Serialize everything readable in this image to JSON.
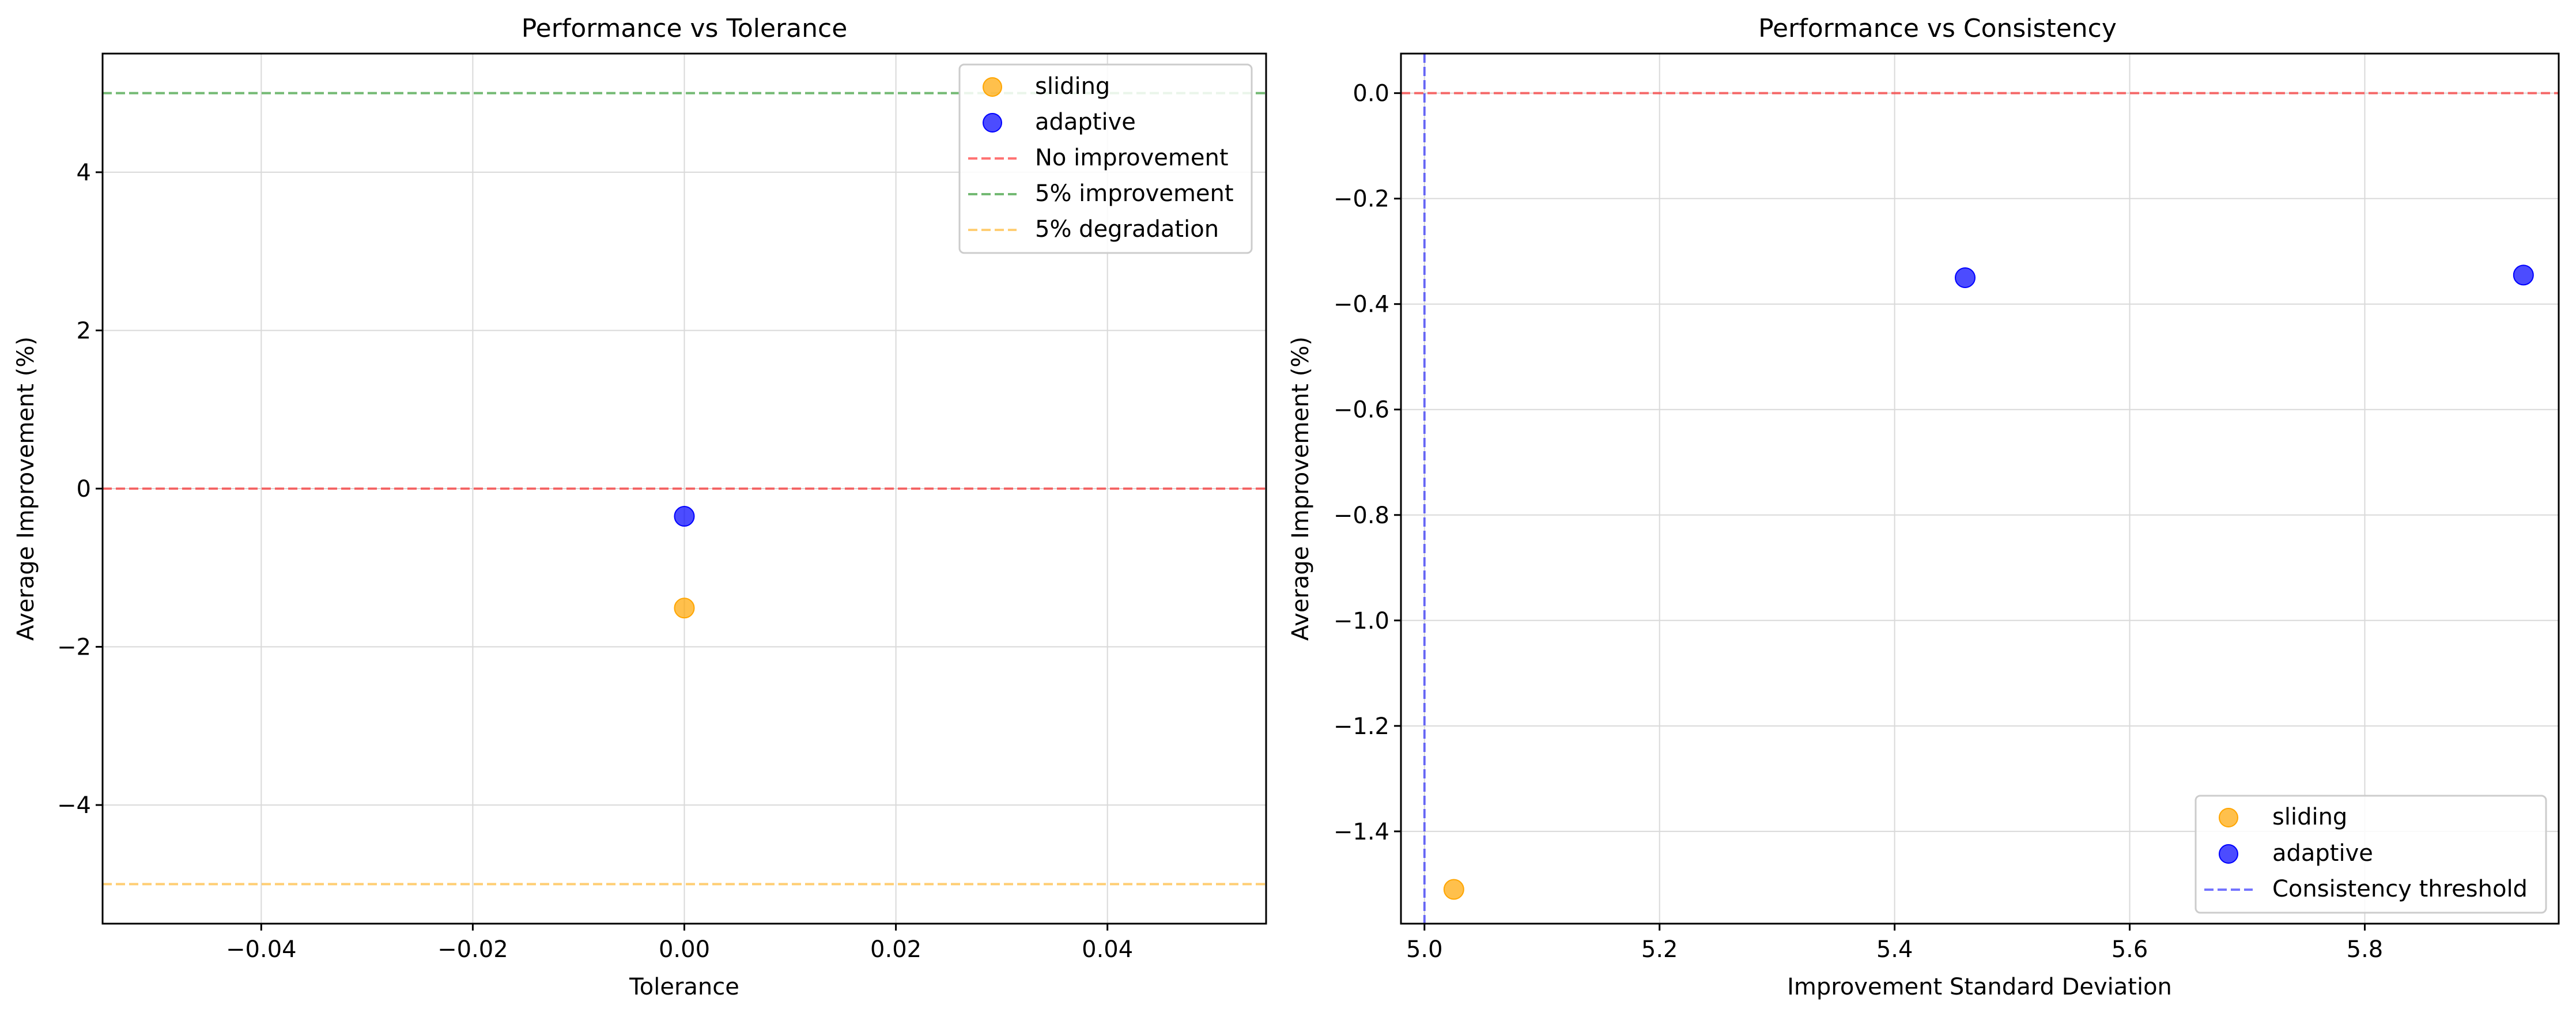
{
  "colors": {
    "sliding": "#FFA500",
    "adaptive": "#0000FF",
    "no_improvement": "#FF0000",
    "improvement_5": "#008000",
    "degradation_5": "#FFA500",
    "consistency_threshold": "#0000FF",
    "grid": "#d9d9d9"
  },
  "chart_data": [
    {
      "type": "scatter",
      "title": "Performance vs Tolerance",
      "xlabel": "Tolerance",
      "ylabel": "Average Improvement (%)",
      "xlim": [
        -0.055,
        0.055
      ],
      "ylim": [
        -5.5,
        5.5
      ],
      "xticks": [
        -0.04,
        -0.02,
        0.0,
        0.02,
        0.04
      ],
      "xtick_labels": [
        "−0.04",
        "−0.02",
        "0.00",
        "0.02",
        "0.04"
      ],
      "yticks": [
        -4,
        -2,
        0,
        2,
        4
      ],
      "ytick_labels": [
        "−4",
        "−2",
        "0",
        "2",
        "4"
      ],
      "grid": true,
      "legend_position": "top-right",
      "series": [
        {
          "name": "sliding",
          "points": [
            {
              "x": 0.0,
              "y": -1.51
            }
          ]
        },
        {
          "name": "adaptive",
          "points": [
            {
              "x": 0.0,
              "y": -0.35
            }
          ]
        }
      ],
      "reference_lines": [
        {
          "name": "No improvement",
          "orientation": "horizontal",
          "value": 0
        },
        {
          "name": "5% improvement",
          "orientation": "horizontal",
          "value": 5
        },
        {
          "name": "5% degradation",
          "orientation": "horizontal",
          "value": -5
        }
      ]
    },
    {
      "type": "scatter",
      "title": "Performance vs Consistency",
      "xlabel": "Improvement Standard Deviation",
      "ylabel": "Average Improvement (%)",
      "xlim": [
        4.98,
        5.965
      ],
      "ylim": [
        -1.575,
        0.075
      ],
      "xticks": [
        5.0,
        5.2,
        5.4,
        5.6,
        5.8
      ],
      "xtick_labels": [
        "5.0",
        "5.2",
        "5.4",
        "5.6",
        "5.8"
      ],
      "yticks": [
        0.0,
        -0.2,
        -0.4,
        -0.6,
        -0.8,
        -1.0,
        -1.2,
        -1.4
      ],
      "ytick_labels": [
        "0.0",
        "−0.2",
        "−0.4",
        "−0.6",
        "−0.8",
        "−1.0",
        "−1.2",
        "−1.4"
      ],
      "grid": true,
      "legend_position": "bottom-right",
      "series": [
        {
          "name": "sliding",
          "points": [
            {
              "x": 5.025,
              "y": -1.51
            }
          ]
        },
        {
          "name": "adaptive",
          "points": [
            {
              "x": 5.46,
              "y": -0.35
            },
            {
              "x": 5.935,
              "y": -0.345
            }
          ]
        }
      ],
      "reference_lines": [
        {
          "name": "",
          "orientation": "horizontal",
          "value": 0
        },
        {
          "name": "Consistency threshold",
          "orientation": "vertical",
          "value": 5.0
        }
      ]
    }
  ]
}
